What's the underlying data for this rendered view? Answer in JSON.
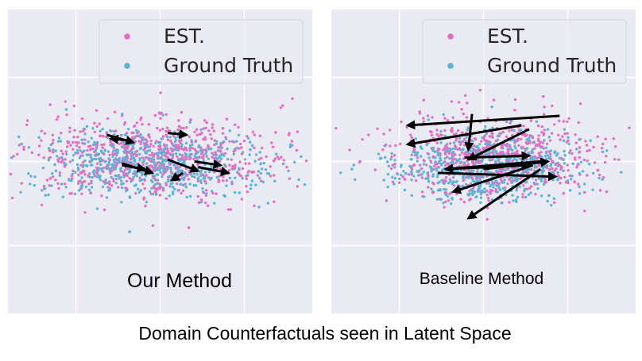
{
  "caption": "Domain Counterfactuals seen in Latent Space",
  "colors": {
    "est": "#e66ec0",
    "ground_truth": "#5cb3d6",
    "panel_bg": "#eaeaf2",
    "grid": "#ffffff",
    "arrow": "#000000"
  },
  "legend": {
    "est_label": "EST.",
    "gt_label": "Ground Truth"
  },
  "chart_data": [
    {
      "type": "scatter",
      "panel_label": "Our Method",
      "xlim": [
        -4,
        4
      ],
      "ylim": [
        -4,
        4
      ],
      "grid": true,
      "legend_position": "top-right",
      "series": [
        {
          "name": "EST.",
          "color": "#e66ec0",
          "center": [
            -0.2,
            0.1
          ],
          "spread": [
            1.55,
            0.55
          ],
          "n": 700
        },
        {
          "name": "Ground Truth",
          "color": "#5cb3d6",
          "center": [
            -0.3,
            -0.05
          ],
          "spread": [
            1.35,
            0.45
          ],
          "n": 700
        }
      ],
      "arrows": [
        {
          "from": [
            -1.4,
            0.7
          ],
          "to": [
            -0.7,
            0.5
          ]
        },
        {
          "from": [
            -0.8,
            0.55
          ],
          "to": [
            -1.3,
            0.6
          ]
        },
        {
          "from": [
            0.2,
            0.75
          ],
          "to": [
            0.7,
            0.7
          ]
        },
        {
          "from": [
            -1.0,
            -0.1
          ],
          "to": [
            -0.4,
            -0.2
          ]
        },
        {
          "from": [
            -1.0,
            -0.05
          ],
          "to": [
            -0.2,
            -0.3
          ]
        },
        {
          "from": [
            0.2,
            0.05
          ],
          "to": [
            1.0,
            -0.25
          ]
        },
        {
          "from": [
            0.9,
            0.0
          ],
          "to": [
            1.6,
            -0.1
          ]
        },
        {
          "from": [
            1.0,
            -0.15
          ],
          "to": [
            1.8,
            -0.3
          ]
        },
        {
          "from": [
            0.6,
            -0.3
          ],
          "to": [
            0.3,
            -0.5
          ]
        }
      ]
    },
    {
      "type": "scatter",
      "panel_label": "Baseline Method",
      "xlim": [
        -4,
        4
      ],
      "ylim": [
        -4,
        4
      ],
      "grid": true,
      "legend_position": "top-right",
      "series": [
        {
          "name": "EST.",
          "color": "#e66ec0",
          "center": [
            0.2,
            0.15
          ],
          "spread": [
            1.35,
            0.55
          ],
          "n": 700
        },
        {
          "name": "Ground Truth",
          "color": "#5cb3d6",
          "center": [
            0.1,
            -0.1
          ],
          "spread": [
            1.25,
            0.45
          ],
          "n": 700
        }
      ],
      "arrows": [
        {
          "from": [
            2.0,
            1.2
          ],
          "to": [
            -2.0,
            0.95
          ]
        },
        {
          "from": [
            1.0,
            0.95
          ],
          "to": [
            -2.0,
            0.45
          ]
        },
        {
          "from": [
            -0.3,
            1.25
          ],
          "to": [
            -0.4,
            0.3
          ]
        },
        {
          "from": [
            1.5,
            0.0
          ],
          "to": [
            -1.0,
            -0.2
          ]
        },
        {
          "from": [
            -1.0,
            -0.2
          ],
          "to": [
            1.2,
            -0.1
          ]
        },
        {
          "from": [
            -1.2,
            -0.3
          ],
          "to": [
            1.9,
            -0.4
          ]
        },
        {
          "from": [
            0.0,
            -0.2
          ],
          "to": [
            1.7,
            0.0
          ]
        },
        {
          "from": [
            -0.5,
            0.1
          ],
          "to": [
            1.2,
            0.15
          ]
        },
        {
          "from": [
            1.2,
            0.85
          ],
          "to": [
            -0.4,
            0.05
          ]
        },
        {
          "from": [
            1.3,
            -0.1
          ],
          "to": [
            -0.8,
            -0.8
          ]
        },
        {
          "from": [
            1.5,
            -0.2
          ],
          "to": [
            -0.4,
            -1.5
          ]
        }
      ]
    }
  ]
}
